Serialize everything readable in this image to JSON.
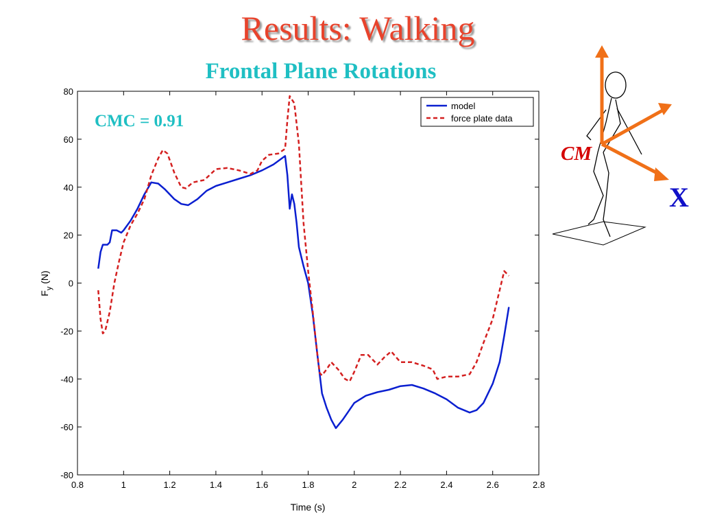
{
  "slide": {
    "title": "Results: Walking",
    "figure_labels": {
      "cm": "CM",
      "x_axis": "X"
    }
  },
  "chart_data": {
    "type": "line",
    "title": "Frontal Plane Rotations",
    "annotation": "CMC = 0.91",
    "xlabel": "Time (s)",
    "ylabel": "Fy (N)",
    "xlim": [
      0.8,
      2.8
    ],
    "ylim": [
      -80,
      80
    ],
    "xticks": [
      0.8,
      1,
      1.2,
      1.4,
      1.6,
      1.8,
      2,
      2.2,
      2.4,
      2.6,
      2.8
    ],
    "yticks": [
      80,
      60,
      40,
      20,
      0,
      -20,
      -40,
      -60,
      -80
    ],
    "xtick_labels": [
      "0.8",
      "1",
      "1.2",
      "1.4",
      "1.6",
      "1.8",
      "2",
      "2.2",
      "2.4",
      "2.6",
      "2.8"
    ],
    "ytick_labels": [
      "80",
      "60",
      "40",
      "20",
      "0",
      "-20",
      "-40",
      "-60",
      "-80"
    ],
    "grid": false,
    "legend_position": "top-right",
    "series": [
      {
        "name": "model",
        "color": "#0a1fd0",
        "style": "solid",
        "points": [
          [
            0.89,
            6
          ],
          [
            0.9,
            13
          ],
          [
            0.91,
            16
          ],
          [
            0.93,
            16
          ],
          [
            0.94,
            17
          ],
          [
            0.95,
            22
          ],
          [
            0.97,
            22
          ],
          [
            0.99,
            21
          ],
          [
            1.0,
            22
          ],
          [
            1.03,
            26
          ],
          [
            1.06,
            31
          ],
          [
            1.09,
            37
          ],
          [
            1.12,
            42
          ],
          [
            1.15,
            41.5
          ],
          [
            1.18,
            39
          ],
          [
            1.22,
            35
          ],
          [
            1.25,
            33
          ],
          [
            1.28,
            32.5
          ],
          [
            1.32,
            35
          ],
          [
            1.36,
            38.5
          ],
          [
            1.4,
            40.5
          ],
          [
            1.45,
            42
          ],
          [
            1.5,
            43.5
          ],
          [
            1.55,
            45
          ],
          [
            1.6,
            47
          ],
          [
            1.65,
            49.5
          ],
          [
            1.7,
            53
          ],
          [
            1.71,
            45
          ],
          [
            1.72,
            31
          ],
          [
            1.73,
            37
          ],
          [
            1.74,
            33
          ],
          [
            1.75,
            25
          ],
          [
            1.76,
            15
          ],
          [
            1.77,
            11
          ],
          [
            1.78,
            7
          ],
          [
            1.8,
            0
          ],
          [
            1.82,
            -13
          ],
          [
            1.84,
            -30
          ],
          [
            1.86,
            -46
          ],
          [
            1.88,
            -52
          ],
          [
            1.9,
            -57
          ],
          [
            1.92,
            -60.5
          ],
          [
            1.95,
            -57
          ],
          [
            2.0,
            -50
          ],
          [
            2.05,
            -47
          ],
          [
            2.1,
            -45.5
          ],
          [
            2.15,
            -44.5
          ],
          [
            2.2,
            -43
          ],
          [
            2.25,
            -42.5
          ],
          [
            2.3,
            -44
          ],
          [
            2.35,
            -46
          ],
          [
            2.4,
            -48.5
          ],
          [
            2.45,
            -52
          ],
          [
            2.5,
            -54
          ],
          [
            2.53,
            -53
          ],
          [
            2.56,
            -50
          ],
          [
            2.6,
            -42
          ],
          [
            2.63,
            -33
          ],
          [
            2.65,
            -22
          ],
          [
            2.67,
            -10
          ]
        ]
      },
      {
        "name": "force plate data",
        "color": "#d42020",
        "style": "dashed",
        "points": [
          [
            0.89,
            -3
          ],
          [
            0.9,
            -15
          ],
          [
            0.91,
            -21
          ],
          [
            0.92,
            -20
          ],
          [
            0.94,
            -12
          ],
          [
            0.96,
            0
          ],
          [
            0.98,
            9
          ],
          [
            1.0,
            17
          ],
          [
            1.03,
            24
          ],
          [
            1.06,
            29
          ],
          [
            1.09,
            35
          ],
          [
            1.12,
            45
          ],
          [
            1.15,
            52
          ],
          [
            1.17,
            55.5
          ],
          [
            1.19,
            54
          ],
          [
            1.22,
            46
          ],
          [
            1.25,
            40
          ],
          [
            1.27,
            39.5
          ],
          [
            1.3,
            42
          ],
          [
            1.35,
            43
          ],
          [
            1.4,
            47.5
          ],
          [
            1.45,
            48
          ],
          [
            1.5,
            47
          ],
          [
            1.55,
            45.5
          ],
          [
            1.58,
            47
          ],
          [
            1.6,
            51
          ],
          [
            1.63,
            53.5
          ],
          [
            1.67,
            54
          ],
          [
            1.7,
            56
          ],
          [
            1.71,
            68
          ],
          [
            1.72,
            78
          ],
          [
            1.74,
            75
          ],
          [
            1.76,
            58
          ],
          [
            1.78,
            25
          ],
          [
            1.8,
            5
          ],
          [
            1.82,
            -12
          ],
          [
            1.84,
            -30
          ],
          [
            1.85,
            -37.5
          ],
          [
            1.86,
            -38.5
          ],
          [
            1.88,
            -36
          ],
          [
            1.9,
            -33
          ],
          [
            1.93,
            -36
          ],
          [
            1.96,
            -40
          ],
          [
            1.98,
            -41
          ],
          [
            2.0,
            -37
          ],
          [
            2.03,
            -30
          ],
          [
            2.06,
            -30
          ],
          [
            2.1,
            -34
          ],
          [
            2.13,
            -31
          ],
          [
            2.16,
            -28.5
          ],
          [
            2.2,
            -33
          ],
          [
            2.25,
            -33
          ],
          [
            2.3,
            -34.5
          ],
          [
            2.34,
            -36
          ],
          [
            2.36,
            -40
          ],
          [
            2.4,
            -39
          ],
          [
            2.45,
            -39
          ],
          [
            2.5,
            -38
          ],
          [
            2.53,
            -33
          ],
          [
            2.56,
            -25
          ],
          [
            2.6,
            -15
          ],
          [
            2.63,
            -3
          ],
          [
            2.65,
            5
          ],
          [
            2.67,
            3
          ]
        ]
      }
    ]
  }
}
